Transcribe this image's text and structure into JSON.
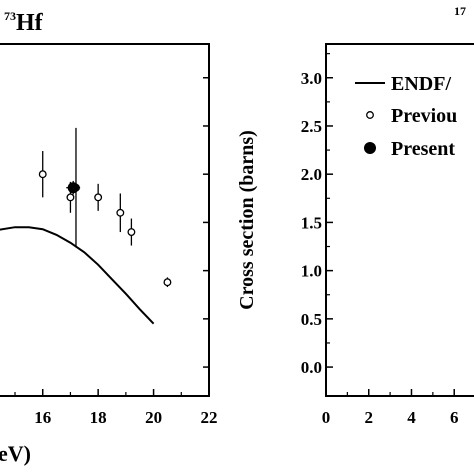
{
  "chart_data": [
    {
      "type": "scatter",
      "title_sup": "73",
      "title": "Hf",
      "xlabel": "eV)",
      "ylabel": "",
      "xlim": [
        14.35,
        22
      ],
      "ylim": [
        -0.3,
        3.35
      ],
      "x_ticks": [
        "16",
        "18",
        "20",
        "22"
      ],
      "y_ticks": [],
      "grid": false,
      "series": [
        {
          "kind": "points-open-errorbar",
          "points": [
            {
              "x": 16.0,
              "y": 2.0,
              "err": 0.24
            },
            {
              "x": 17.0,
              "y": 1.76,
              "err": 0.16
            },
            {
              "x": 17.2,
              "y": 1.86,
              "err": 0.62
            },
            {
              "x": 18.0,
              "y": 1.76,
              "err": 0.14
            },
            {
              "x": 18.8,
              "y": 1.6,
              "err": 0.2
            },
            {
              "x": 19.2,
              "y": 1.4,
              "err": 0.14
            },
            {
              "x": 20.5,
              "y": 0.88,
              "err": 0.05
            }
          ]
        },
        {
          "kind": "points-filled-errorbar",
          "points": [
            {
              "x": 17.1,
              "y": 1.86,
              "err": 0.07,
              "xerr": 0.25
            }
          ]
        },
        {
          "kind": "line",
          "x": [
            14.35,
            15.0,
            15.5,
            16.0,
            16.5,
            17.0,
            17.5,
            18.0,
            18.5,
            19.0,
            19.5,
            20.0
          ],
          "y": [
            1.42,
            1.45,
            1.45,
            1.43,
            1.37,
            1.29,
            1.19,
            1.06,
            0.91,
            0.76,
            0.6,
            0.45
          ]
        }
      ]
    },
    {
      "type": "line",
      "title_sup": "17",
      "title": "",
      "xlabel": "",
      "ylabel": "Cross section (barns)",
      "xlim": [
        0,
        7.3
      ],
      "ylim": [
        -0.3,
        3.35
      ],
      "x_ticks": [
        "0",
        "2",
        "4",
        "6"
      ],
      "y_ticks": [
        "0.0",
        "0.5",
        "1.0",
        "1.5",
        "2.0",
        "2.5",
        "3.0"
      ],
      "grid": false,
      "legend_position": "top-left",
      "legend": [
        {
          "label": "ENDF/",
          "marker": "line"
        },
        {
          "label": "Previou",
          "marker": "open-circle"
        },
        {
          "label": "Present",
          "marker": "filled-circle"
        }
      ]
    }
  ]
}
